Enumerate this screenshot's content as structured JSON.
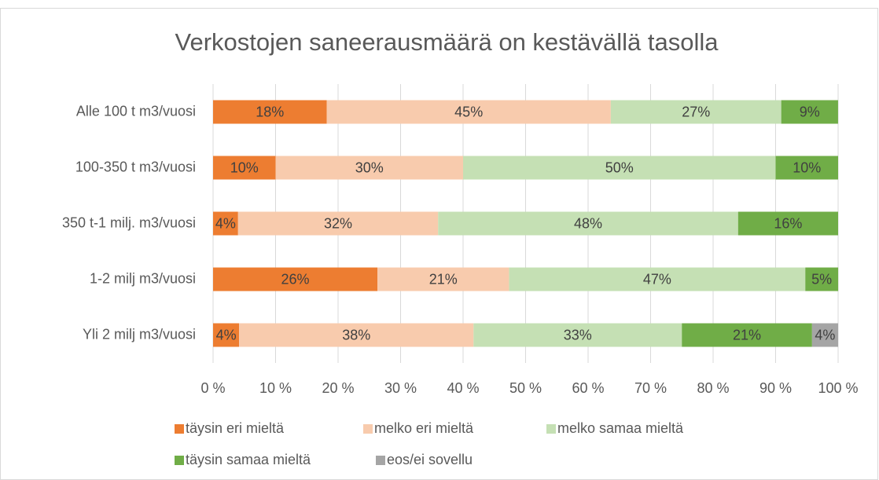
{
  "chart_data": {
    "type": "stacked-bar-horizontal",
    "title": "Verkostojen saneerausmäärä on kestävällä tasolla",
    "categories": [
      "Alle 100 t m3/vuosi",
      "100-350 t m3/vuosi",
      "350 t-1 milj. m3/vuosi",
      "1-2 milj m3/vuosi",
      "Yli 2 milj m3/vuosi"
    ],
    "series": [
      {
        "name": "täysin eri mieltä",
        "color": "#ed7d31",
        "values": [
          18.18,
          10,
          4,
          26.3,
          4.17
        ],
        "value_labels": [
          "18%",
          "10%",
          "4%",
          "26%",
          "4%"
        ]
      },
      {
        "name": "melko eri mieltä",
        "color": "#f8cbad",
        "values": [
          45.45,
          30,
          32,
          21.05,
          37.5
        ],
        "value_labels": [
          "45%",
          "30%",
          "32%",
          "21%",
          "38%"
        ]
      },
      {
        "name": "melko samaa mieltä",
        "color": "#c5e0b4",
        "values": [
          27.27,
          50,
          48,
          47.4,
          33.33
        ],
        "value_labels": [
          "27%",
          "50%",
          "48%",
          "47%",
          "33%"
        ]
      },
      {
        "name": "täysin samaa mieltä",
        "color": "#70ad47",
        "values": [
          9.09,
          10,
          16,
          5.26,
          20.83
        ],
        "value_labels": [
          "9%",
          "10%",
          "16%",
          "5%",
          "21%"
        ]
      },
      {
        "name": "eos/ei sovellu",
        "color": "#a5a5a5",
        "values": [
          null,
          null,
          null,
          null,
          4.17
        ],
        "value_labels": [
          null,
          null,
          null,
          null,
          "4%"
        ]
      }
    ],
    "xlim": [
      0,
      100
    ],
    "xticks": [
      {
        "value": 0,
        "label": "0 %"
      },
      {
        "value": 10,
        "label": "10 %"
      },
      {
        "value": 20,
        "label": "20 %"
      },
      {
        "value": 30,
        "label": "30 %"
      },
      {
        "value": 40,
        "label": "40 %"
      },
      {
        "value": 50,
        "label": "50 %"
      },
      {
        "value": 60,
        "label": "60 %"
      },
      {
        "value": 70,
        "label": "70 %"
      },
      {
        "value": 80,
        "label": "80 %"
      },
      {
        "value": 90,
        "label": "90 %"
      },
      {
        "value": 100,
        "label": "100 %"
      }
    ],
    "grid": true,
    "legend": "bottom"
  }
}
